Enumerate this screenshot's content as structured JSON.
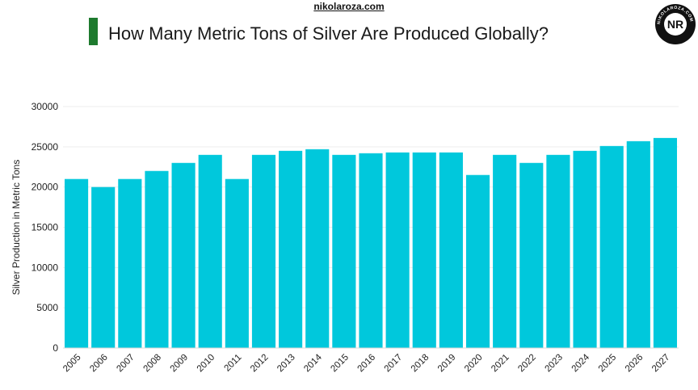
{
  "header": {
    "site": "nikolaroza.com",
    "title": "How Many Metric Tons of Silver Are Produced Globally?",
    "logo_initials": "NR",
    "logo_ring_text": "NIKOLAROZA.COM"
  },
  "colors": {
    "bar": "#00C8DC",
    "accent": "#1E7A2E",
    "grid": "#EDEDED",
    "axis_text": "#222222"
  },
  "chart_data": {
    "type": "bar",
    "title": "How Many Metric Tons of Silver Are Produced Globally?",
    "xlabel": "",
    "ylabel": "Silver Production in Metric Tons",
    "categories": [
      "2005",
      "2006",
      "2007",
      "2008",
      "2009",
      "2010",
      "2011",
      "2012",
      "2013",
      "2014",
      "2015",
      "2016",
      "2017",
      "2018",
      "2019",
      "2020",
      "2021",
      "2022",
      "2023",
      "2024",
      "2025",
      "2026",
      "2027"
    ],
    "values": [
      21000,
      20000,
      21000,
      22000,
      23000,
      24000,
      21000,
      24000,
      24500,
      24700,
      24000,
      24200,
      24300,
      24300,
      24300,
      21500,
      24000,
      23000,
      24000,
      24500,
      25100,
      25700,
      26100
    ],
    "ylim": [
      0,
      30000
    ],
    "yticks": [
      0,
      5000,
      10000,
      15000,
      20000,
      25000,
      30000
    ],
    "grid": true,
    "legend": "none"
  }
}
